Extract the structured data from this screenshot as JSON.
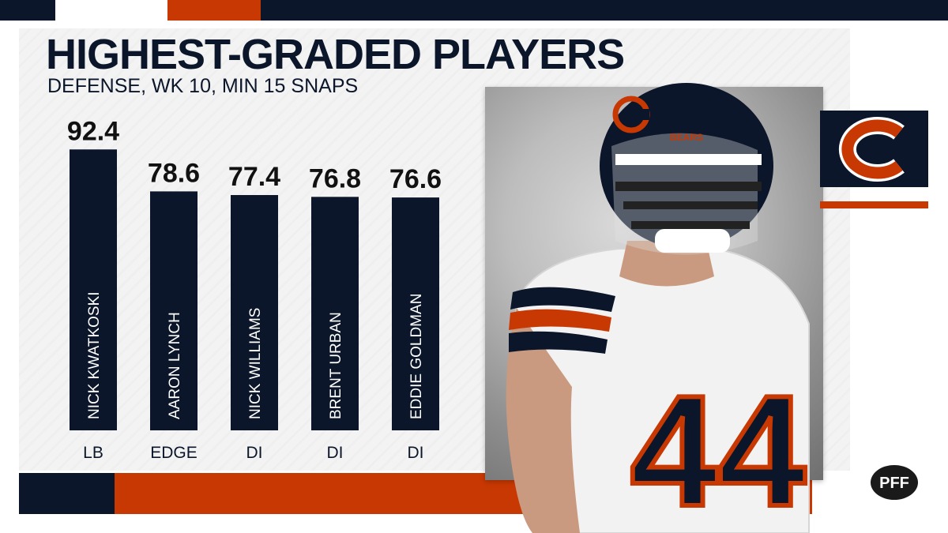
{
  "header": {
    "title": "HIGHEST-GRADED PLAYERS",
    "subtitle": "DEFENSE, WK 10, MIN 15 SNAPS"
  },
  "photo": {
    "jersey_number": "44",
    "helmet_text": "BEARS"
  },
  "brand": {
    "logo_text": "PFF",
    "navy": "#0b162a",
    "orange": "#c83803"
  },
  "chart_data": {
    "type": "bar",
    "title": "HIGHEST-GRADED PLAYERS",
    "subtitle": "DEFENSE, WK 10, MIN 15 SNAPS",
    "categories": [
      "NICK KWATKOSKI",
      "AARON LYNCH",
      "NICK WILLIAMS",
      "BRENT URBAN",
      "EDDIE GOLDMAN"
    ],
    "positions": [
      "LB",
      "EDGE",
      "DI",
      "DI",
      "DI"
    ],
    "values": [
      92.4,
      78.6,
      77.4,
      76.8,
      76.6
    ],
    "value_labels": [
      "92.4",
      "78.6",
      "77.4",
      "76.8",
      "76.6"
    ],
    "bar_color": "#0b162a",
    "grid": false,
    "legend": "none"
  }
}
